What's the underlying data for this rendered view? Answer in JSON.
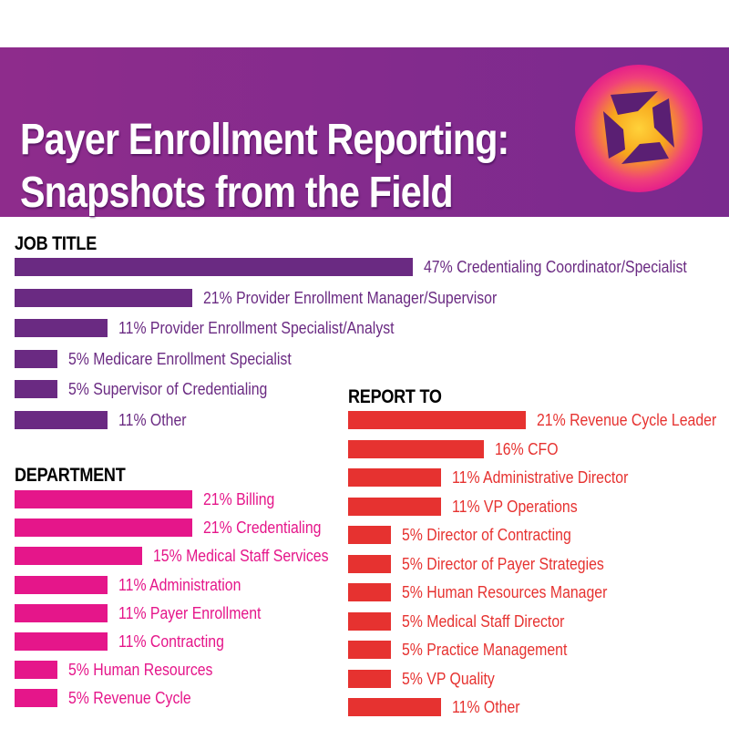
{
  "header": {
    "title_line1": "Payer Enrollment Reporting:",
    "title_line2": "Snapshots from the Field"
  },
  "colors": {
    "header_bg": "#7d2b8d",
    "job_title": "#6a2a82",
    "department": "#e5168a",
    "report_to": "#e63230",
    "logo_outer": "#e51f8a",
    "logo_inner": "#f7a51b"
  },
  "logo": {
    "icon": "aperture-icon"
  },
  "chart_data": [
    {
      "type": "bar",
      "title": "JOB TITLE",
      "unit": "%",
      "categories": [
        "Credentialing Coordinator/Specialist",
        "Provider Enrollment Manager/Supervisor",
        "Provider Enrollment Specialist/Analyst",
        "Medicare Enrollment Specialist",
        "Supervisor of Credentialing",
        "Other"
      ],
      "values": [
        47,
        21,
        11,
        5,
        5,
        11
      ],
      "labels": [
        "47% Credentialing Coordinator/Specialist",
        "21% Provider Enrollment Manager/Supervisor",
        "11% Provider Enrollment Specialist/Analyst",
        "5% Medicare Enrollment Specialist",
        "5% Supervisor of Credentialing",
        "11% Other"
      ]
    },
    {
      "type": "bar",
      "title": "DEPARTMENT",
      "unit": "%",
      "categories": [
        "Billing",
        "Credentialing",
        "Medical Staff Services",
        "Administration",
        "Payer Enrollment",
        "Contracting",
        "Human Resources",
        "Revenue Cycle"
      ],
      "values": [
        21,
        21,
        15,
        11,
        11,
        11,
        5,
        5
      ],
      "labels": [
        "21% Billing",
        "21% Credentialing",
        "15% Medical Staff Services",
        "11% Administration",
        "11% Payer Enrollment",
        "11% Contracting",
        "5% Human Resources",
        "5% Revenue Cycle"
      ]
    },
    {
      "type": "bar",
      "title": "REPORT TO",
      "unit": "%",
      "categories": [
        "Revenue Cycle Leader",
        "CFO",
        "Administrative Director",
        "VP Operations",
        "Director of Contracting",
        "Director of Payer Strategies",
        "Human Resources Manager",
        "Medical Staff Director",
        "Practice Management",
        "VP Quality",
        "Other"
      ],
      "values": [
        21,
        16,
        11,
        11,
        5,
        5,
        5,
        5,
        5,
        5,
        11
      ],
      "labels": [
        "21% Revenue Cycle Leader",
        "16% CFO",
        "11% Administrative Director",
        "11% VP Operations",
        "5% Director of Contracting",
        "5% Director of Payer Strategies",
        "5% Human Resources Manager",
        "5% Medical Staff Director",
        "5% Practice Management",
        "5% VP Quality",
        "11% Other"
      ]
    }
  ]
}
